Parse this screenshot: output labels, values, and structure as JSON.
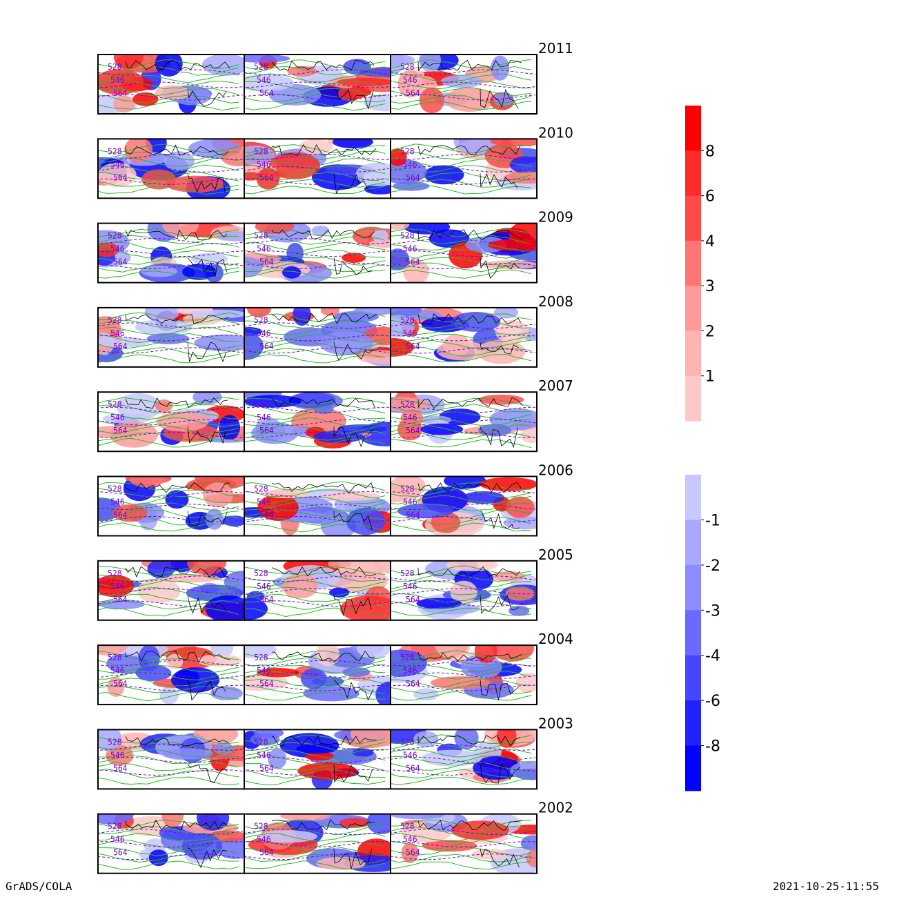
{
  "footer": {
    "left": "GrADS/COLA",
    "right": "2021-10-25-11:55"
  },
  "years": [
    "2011",
    "2010",
    "2009",
    "2008",
    "2007",
    "2006",
    "2005",
    "2004",
    "2003",
    "2002"
  ],
  "panels_per_row": 3,
  "contour_labels": [
    "528",
    "546",
    "564"
  ],
  "colorbar_positive": {
    "colors": [
      "#ffc8c8",
      "#ffb4b4",
      "#ff9a9a",
      "#ff7474",
      "#ff4a4a",
      "#ff2a2a",
      "#ff0000"
    ],
    "labels": [
      "1",
      "2",
      "3",
      "4",
      "6",
      "8"
    ]
  },
  "colorbar_negative": {
    "colors": [
      "#c8c8ff",
      "#a8a8ff",
      "#8c8cff",
      "#6a6aff",
      "#4646ff",
      "#2222ff",
      "#0000ff"
    ],
    "labels": [
      "-1",
      "-2",
      "-3",
      "-4",
      "-6",
      "-8"
    ]
  },
  "colors": {
    "contour_line": "#22bb22",
    "dashed_contour": "#7a00d6",
    "coast": "#000000"
  }
}
